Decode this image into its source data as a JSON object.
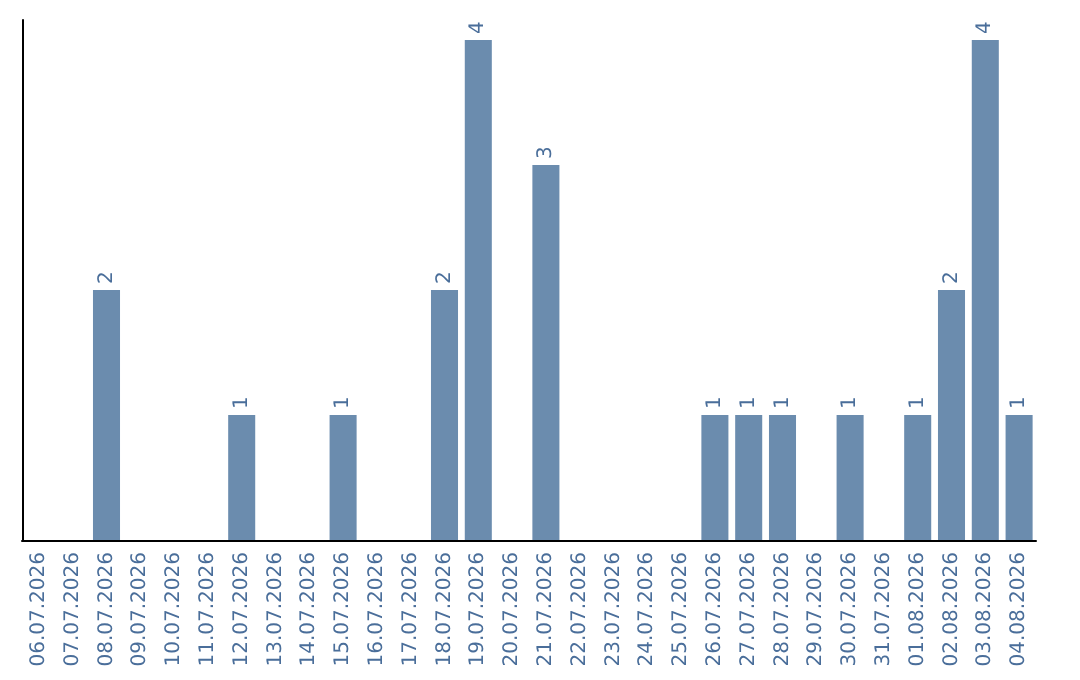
{
  "chart_data": {
    "type": "bar",
    "categories": [
      "06.07.2026",
      "07.07.2026",
      "08.07.2026",
      "09.07.2026",
      "10.07.2026",
      "11.07.2026",
      "12.07.2026",
      "13.07.2026",
      "14.07.2026",
      "15.07.2026",
      "16.07.2026",
      "17.07.2026",
      "18.07.2026",
      "19.07.2026",
      "20.07.2026",
      "21.07.2026",
      "22.07.2026",
      "23.07.2026",
      "24.07.2026",
      "25.07.2026",
      "26.07.2026",
      "27.07.2026",
      "28.07.2026",
      "29.07.2026",
      "30.07.2026",
      "31.07.2026",
      "01.08.2026",
      "02.08.2026",
      "03.08.2026",
      "04.08.2026"
    ],
    "values": [
      0,
      0,
      2,
      0,
      0,
      0,
      1,
      0,
      0,
      1,
      0,
      0,
      2,
      4,
      0,
      3,
      0,
      0,
      0,
      0,
      1,
      1,
      1,
      0,
      1,
      0,
      1,
      2,
      4,
      1
    ],
    "value_labels": [
      null,
      null,
      "2",
      null,
      null,
      null,
      "1",
      null,
      null,
      "1",
      null,
      null,
      "2",
      "4",
      null,
      "3",
      null,
      null,
      null,
      null,
      "1",
      "1",
      "1",
      null,
      "1",
      null,
      "1",
      "2",
      "4",
      "1"
    ],
    "color": "#6b8cae",
    "tick_labels": "x",
    "grid": false
  }
}
